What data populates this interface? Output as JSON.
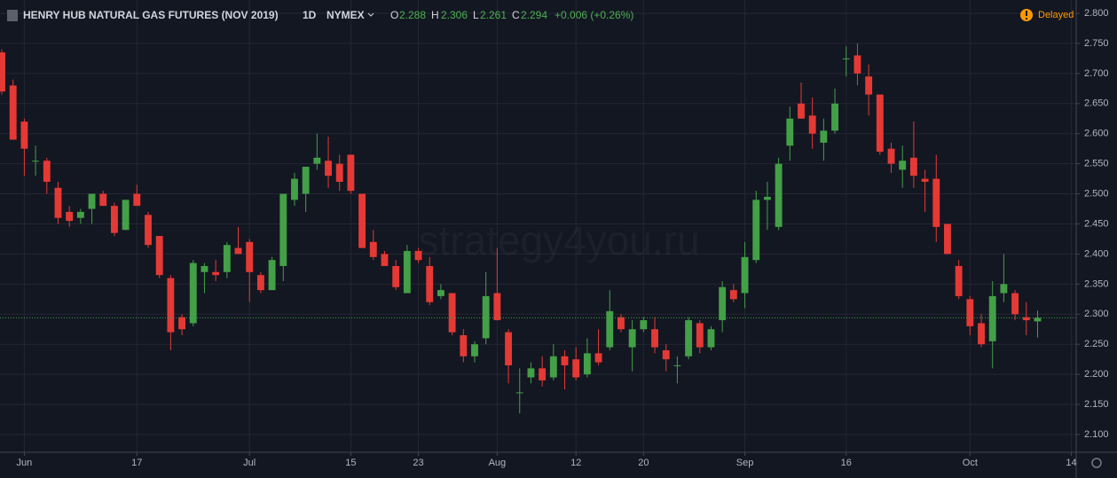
{
  "chart_data": {
    "type": "candlestick",
    "title": "HENRY HUB NATURAL GAS FUTURES (NOV 2019)",
    "interval": "1D",
    "exchange": "NYMEX",
    "ohlc_labels": [
      "O",
      "H",
      "L",
      "C"
    ],
    "change": "+0.006 (+0.26%)",
    "status": "Delayed",
    "watermark": "strategy4you.ru",
    "up_color": "#43a047",
    "down_color": "#e53935",
    "grid": true,
    "open": [
      2.735,
      2.68,
      2.62,
      2.555,
      2.555,
      2.51,
      2.47,
      2.46,
      2.475,
      2.5,
      2.48,
      2.44,
      2.5,
      2.465,
      2.43,
      2.36,
      2.295,
      2.285,
      2.37,
      2.37,
      2.37,
      2.41,
      2.42,
      2.365,
      2.34,
      2.38,
      2.49,
      2.5,
      2.55,
      2.555,
      2.55,
      2.565,
      2.5,
      2.42,
      2.4,
      2.38,
      2.335,
      2.405,
      2.38,
      2.33,
      2.335,
      2.265,
      2.23,
      2.26,
      2.335,
      2.27,
      2.17,
      2.195,
      2.21,
      2.195,
      2.23,
      2.225,
      2.2,
      2.235,
      2.245,
      2.295,
      2.245,
      2.275,
      2.275,
      2.24,
      2.215,
      2.23,
      2.285,
      2.245,
      2.29,
      2.34,
      2.335,
      2.39,
      2.49,
      2.445,
      2.58,
      2.65,
      2.63,
      2.585,
      2.605,
      2.725,
      2.73,
      2.695,
      2.665,
      2.575,
      2.54,
      2.56,
      2.525,
      2.525,
      2.45,
      2.38,
      2.325,
      2.285,
      2.255,
      2.335,
      2.335,
      2.295,
      2.288
    ],
    "high": [
      2.74,
      2.69,
      2.625,
      2.58,
      2.56,
      2.52,
      2.48,
      2.475,
      2.5,
      2.505,
      2.485,
      2.49,
      2.515,
      2.47,
      2.43,
      2.365,
      2.3,
      2.39,
      2.385,
      2.39,
      2.42,
      2.445,
      2.425,
      2.37,
      2.395,
      2.5,
      2.535,
      2.545,
      2.6,
      2.595,
      2.565,
      2.565,
      2.5,
      2.44,
      2.405,
      2.39,
      2.415,
      2.41,
      2.395,
      2.35,
      2.335,
      2.275,
      2.255,
      2.37,
      2.41,
      2.275,
      2.21,
      2.22,
      2.23,
      2.25,
      2.24,
      2.245,
      2.26,
      2.275,
      2.34,
      2.3,
      2.29,
      2.295,
      2.295,
      2.25,
      2.23,
      2.295,
      2.29,
      2.28,
      2.355,
      2.35,
      2.42,
      2.505,
      2.52,
      2.56,
      2.645,
      2.685,
      2.66,
      2.625,
      2.675,
      2.745,
      2.75,
      2.715,
      2.665,
      2.585,
      2.58,
      2.62,
      2.54,
      2.565,
      2.45,
      2.39,
      2.33,
      2.3,
      2.355,
      2.4,
      2.34,
      2.32,
      2.306
    ],
    "low": [
      2.665,
      2.59,
      2.53,
      2.53,
      2.5,
      2.45,
      2.445,
      2.45,
      2.45,
      2.48,
      2.43,
      2.44,
      2.48,
      2.41,
      2.36,
      2.24,
      2.265,
      2.28,
      2.335,
      2.355,
      2.36,
      2.4,
      2.32,
      2.335,
      2.34,
      2.355,
      2.48,
      2.47,
      2.54,
      2.51,
      2.505,
      2.5,
      2.41,
      2.39,
      2.38,
      2.34,
      2.335,
      2.385,
      2.315,
      2.325,
      2.265,
      2.22,
      2.22,
      2.25,
      2.29,
      2.185,
      2.135,
      2.185,
      2.18,
      2.19,
      2.175,
      2.19,
      2.195,
      2.215,
      2.24,
      2.27,
      2.205,
      2.27,
      2.235,
      2.205,
      2.185,
      2.225,
      2.235,
      2.24,
      2.27,
      2.32,
      2.31,
      2.385,
      2.44,
      2.44,
      2.555,
      2.625,
      2.575,
      2.555,
      2.6,
      2.695,
      2.68,
      2.63,
      2.565,
      2.535,
      2.51,
      2.51,
      2.47,
      2.42,
      2.4,
      2.325,
      2.265,
      2.245,
      2.21,
      2.32,
      2.29,
      2.265,
      2.261
    ],
    "close": [
      2.67,
      2.59,
      2.575,
      2.555,
      2.52,
      2.46,
      2.455,
      2.47,
      2.5,
      2.48,
      2.435,
      2.49,
      2.48,
      2.415,
      2.365,
      2.27,
      2.275,
      2.385,
      2.38,
      2.365,
      2.415,
      2.4,
      2.37,
      2.34,
      2.39,
      2.5,
      2.525,
      2.545,
      2.56,
      2.53,
      2.52,
      2.505,
      2.41,
      2.395,
      2.38,
      2.345,
      2.405,
      2.39,
      2.32,
      2.34,
      2.27,
      2.23,
      2.25,
      2.33,
      2.29,
      2.215,
      2.17,
      2.21,
      2.19,
      2.23,
      2.215,
      2.195,
      2.235,
      2.22,
      2.305,
      2.275,
      2.275,
      2.29,
      2.245,
      2.225,
      2.215,
      2.29,
      2.245,
      2.275,
      2.345,
      2.325,
      2.395,
      2.49,
      2.495,
      2.55,
      2.625,
      2.625,
      2.6,
      2.605,
      2.65,
      2.725,
      2.7,
      2.665,
      2.57,
      2.55,
      2.555,
      2.53,
      2.52,
      2.445,
      2.4,
      2.33,
      2.28,
      2.25,
      2.33,
      2.35,
      2.3,
      2.29,
      2.294
    ],
    "xlim": [
      -0.16,
      95.43
    ],
    "xticks": [
      {
        "value": 2,
        "label": "Jun"
      },
      {
        "value": 12,
        "label": "17"
      },
      {
        "value": 22,
        "label": "Jul"
      },
      {
        "value": 31,
        "label": "15"
      },
      {
        "value": 37,
        "label": "23"
      },
      {
        "value": 44,
        "label": "Aug"
      },
      {
        "value": 51,
        "label": "12"
      },
      {
        "value": 57,
        "label": "20"
      },
      {
        "value": 66,
        "label": "Sep"
      },
      {
        "value": 75,
        "label": "16"
      },
      {
        "value": 86,
        "label": "Oct"
      },
      {
        "value": 95,
        "label": "14"
      }
    ],
    "ylim": [
      2.0705,
      2.8221
    ],
    "yticks": [
      {
        "value": 2.1,
        "label": "2.100"
      },
      {
        "value": 2.15,
        "label": "2.150"
      },
      {
        "value": 2.2,
        "label": "2.200"
      },
      {
        "value": 2.25,
        "label": "2.250"
      },
      {
        "value": 2.3,
        "label": "2.300"
      },
      {
        "value": 2.35,
        "label": "2.350"
      },
      {
        "value": 2.4,
        "label": "2.400"
      },
      {
        "value": 2.45,
        "label": "2.450"
      },
      {
        "value": 2.5,
        "label": "2.500"
      },
      {
        "value": 2.55,
        "label": "2.550"
      },
      {
        "value": 2.6,
        "label": "2.600"
      },
      {
        "value": 2.65,
        "label": "2.650"
      },
      {
        "value": 2.7,
        "label": "2.700"
      },
      {
        "value": 2.75,
        "label": "2.750"
      },
      {
        "value": 2.8,
        "label": "2.800"
      }
    ]
  }
}
